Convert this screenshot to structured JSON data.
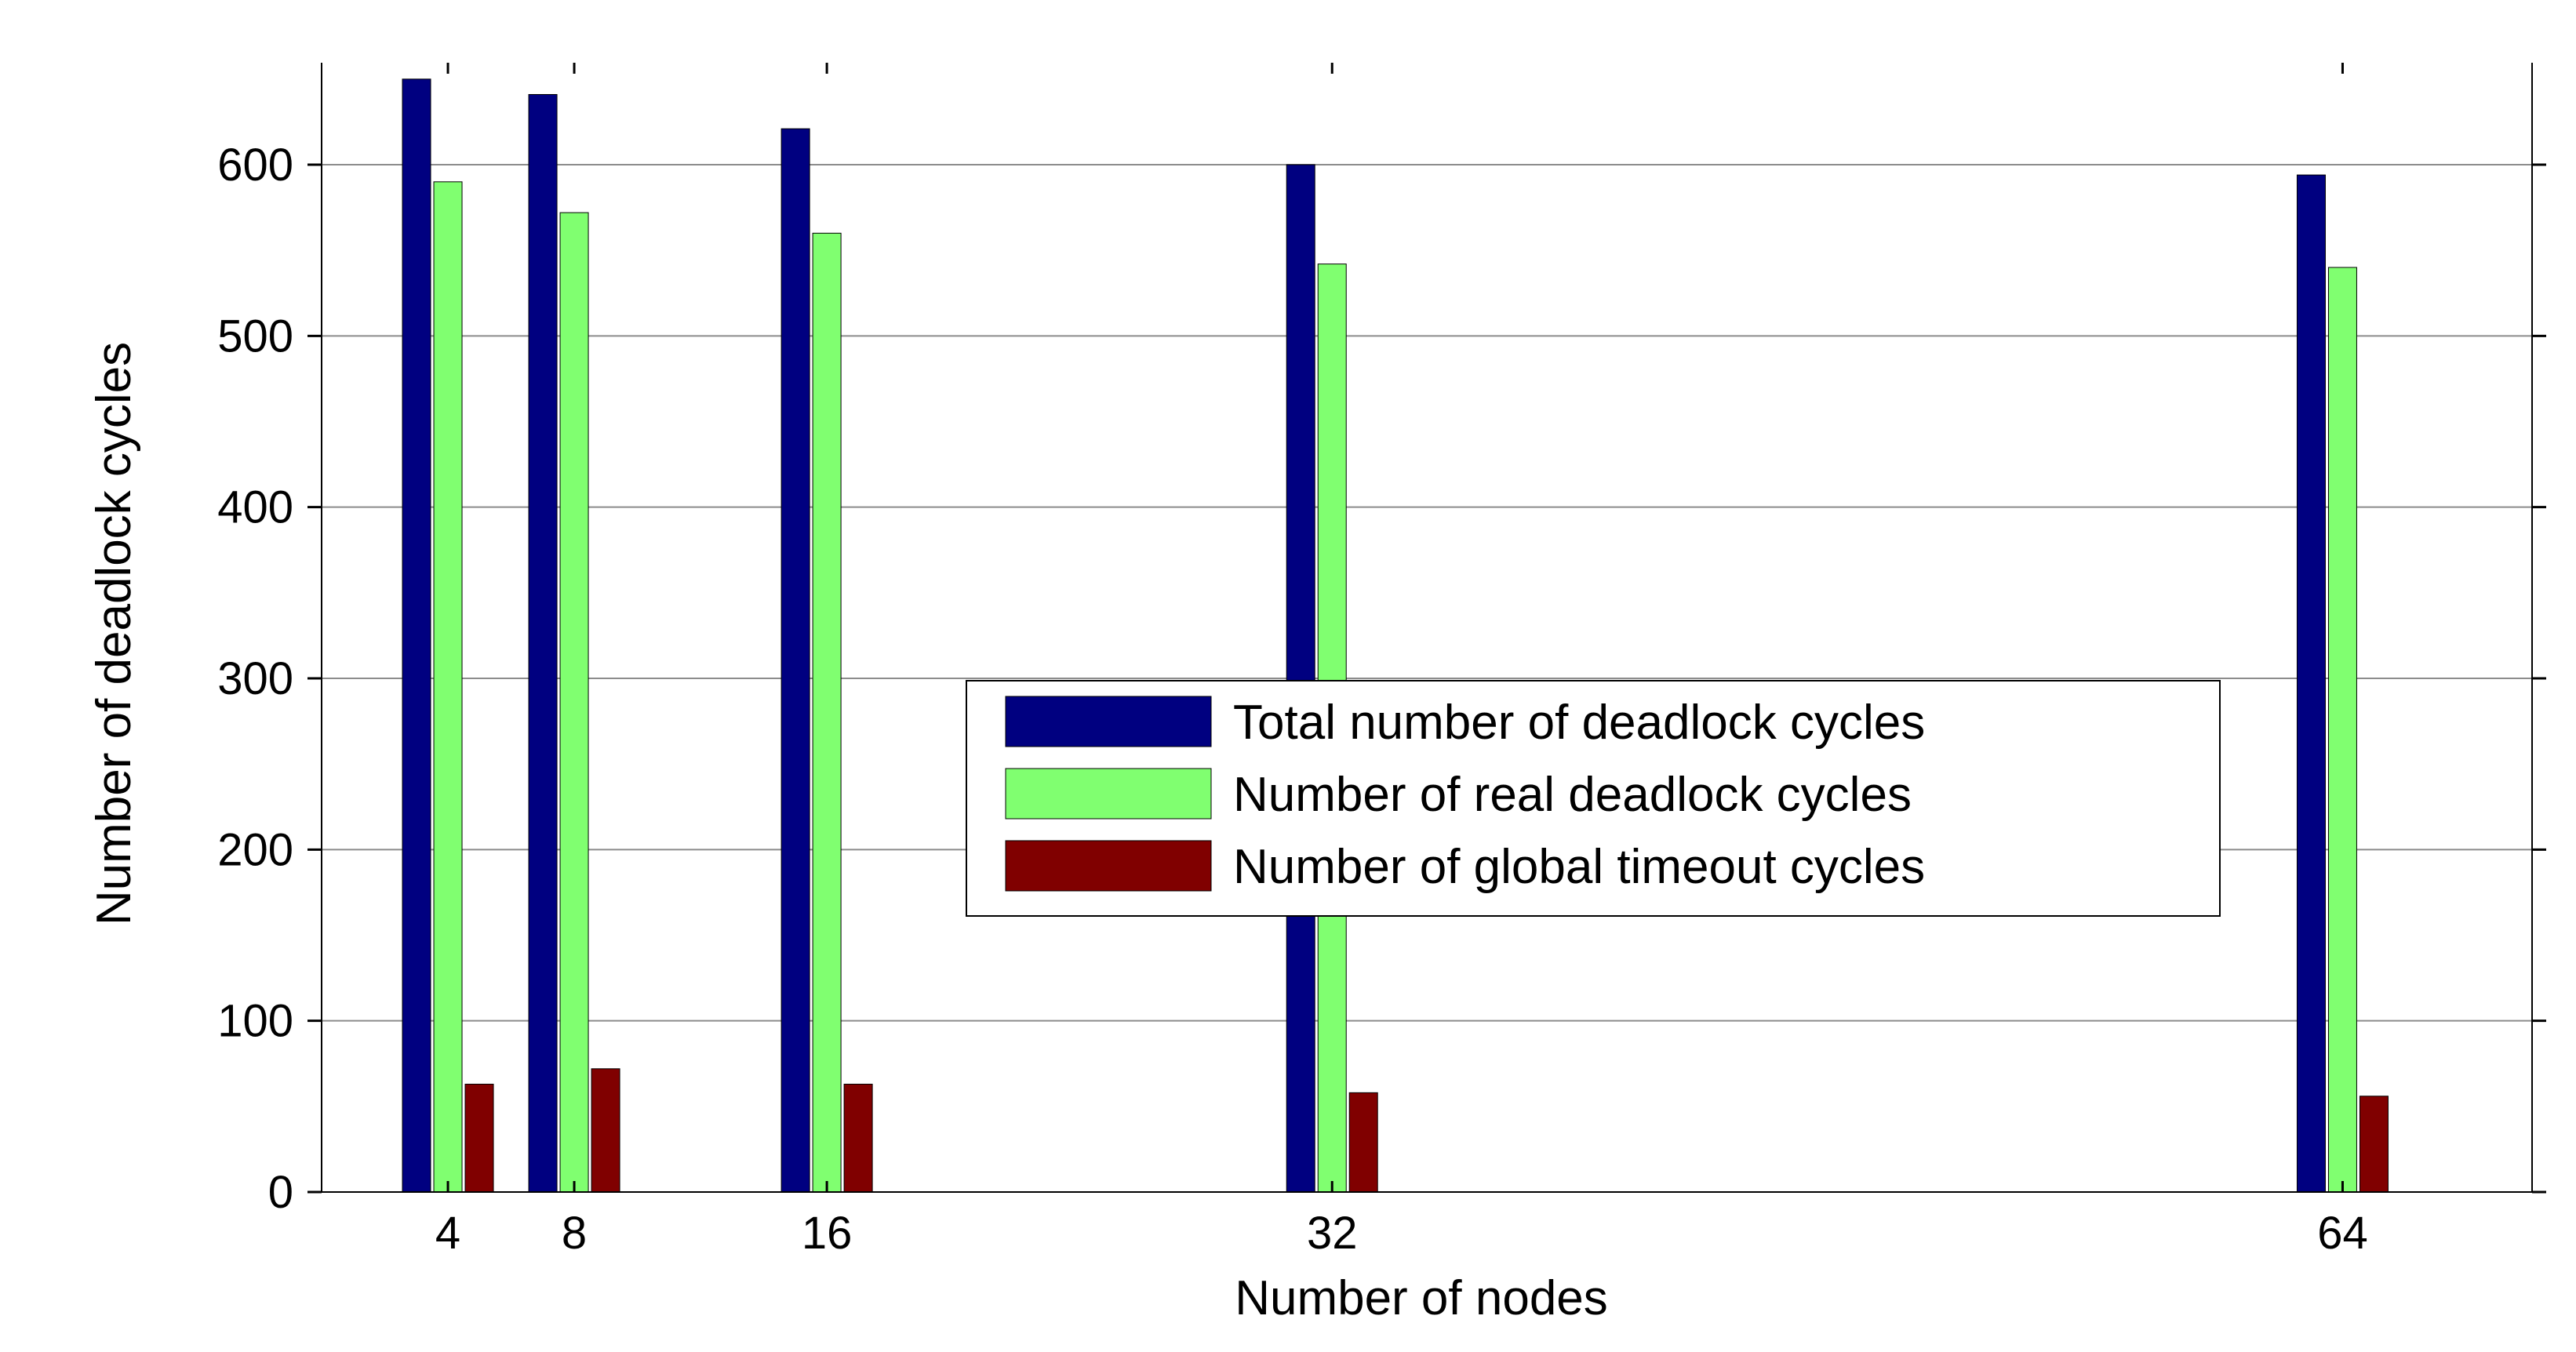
{
  "chart_data": {
    "type": "bar",
    "xlabel": "Number of nodes",
    "ylabel": "Number of deadlock cycles",
    "x": [
      4,
      8,
      16,
      32,
      64
    ],
    "xticks": [
      "4",
      "8",
      "16",
      "32",
      "64"
    ],
    "xlim": [
      0,
      70
    ],
    "ylim": [
      0,
      650
    ],
    "yticks": [
      0,
      100,
      200,
      300,
      400,
      500,
      600
    ],
    "grid": "horizontal",
    "legend_position": "center-right",
    "series": [
      {
        "name": "Total number of deadlock cycles",
        "color": "#000080",
        "values": [
          650,
          641,
          621,
          600,
          594
        ]
      },
      {
        "name": "Number of real deadlock cycles",
        "color": "#80ff70",
        "values": [
          590,
          572,
          560,
          542,
          540
        ]
      },
      {
        "name": "Number of global timeout cycles",
        "color": "#800000",
        "values": [
          63,
          72,
          63,
          58,
          56
        ]
      }
    ]
  }
}
